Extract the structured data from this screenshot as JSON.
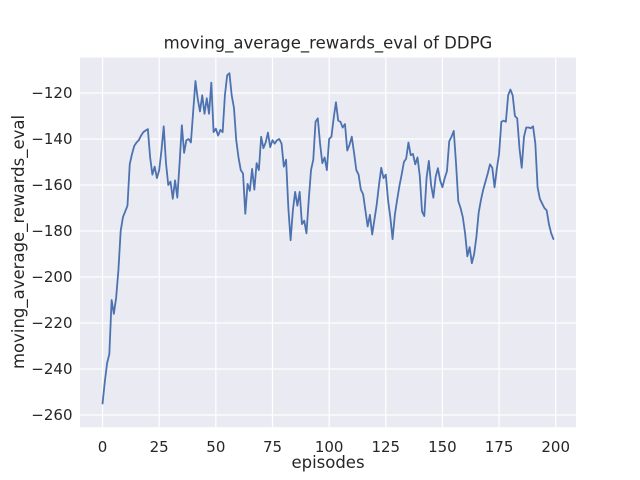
{
  "figure": {
    "title": "moving_average_rewards_eval of DDPG",
    "xlabel": "episodes",
    "ylabel": "moving_average_rewards_eval"
  },
  "style": {
    "axes_background": "#eaeaf2",
    "grid_color": "#ffffff",
    "line_color": "#4c72b0",
    "text_color": "#262626",
    "figure_background": "#ffffff"
  },
  "chart_data": {
    "type": "line",
    "title": "moving_average_rewards_eval of DDPG",
    "xlabel": "episodes",
    "ylabel": "moving_average_rewards_eval",
    "x_ticks": [
      0,
      25,
      50,
      75,
      100,
      125,
      150,
      175,
      200
    ],
    "y_ticks": [
      -120,
      -140,
      -160,
      -180,
      -200,
      -220,
      -240,
      -260
    ],
    "xlim": [
      -9.95,
      208.95
    ],
    "ylim": [
      -265.3,
      -104.6
    ],
    "grid": true,
    "legend": false,
    "x_start": 0,
    "x_step": 1,
    "values": [
      -255,
      -245.5,
      -237.5,
      -233.5,
      -210,
      -216,
      -209,
      -197,
      -180,
      -174,
      -171.5,
      -169,
      -151,
      -146.5,
      -143,
      -141.5,
      -140.5,
      -138.5,
      -137,
      -136.3,
      -135.7,
      -148,
      -155.5,
      -152,
      -157,
      -153.5,
      -145,
      -134.5,
      -150.5,
      -160,
      -158.5,
      -166,
      -158,
      -165.5,
      -150.5,
      -134,
      -146,
      -140.5,
      -140,
      -141.5,
      -128,
      -114.8,
      -122.5,
      -128,
      -121,
      -129,
      -122.3,
      -129,
      -115.5,
      -137,
      -135.5,
      -138.5,
      -136,
      -137,
      -121,
      -112.3,
      -111.4,
      -121,
      -126.5,
      -140.5,
      -148,
      -153.5,
      -155,
      -172.5,
      -159.5,
      -162.5,
      -153,
      -162,
      -150.5,
      -153.5,
      -139,
      -144,
      -141.5,
      -137.2,
      -143.5,
      -140.5,
      -142,
      -140.5,
      -140,
      -142,
      -152,
      -149,
      -170,
      -184,
      -171,
      -163,
      -169,
      -163,
      -177,
      -175.5,
      -181,
      -166.5,
      -153.5,
      -149,
      -132.5,
      -131,
      -142,
      -150.5,
      -148,
      -153.5,
      -140,
      -139,
      -131,
      -124,
      -132,
      -132.5,
      -135,
      -133.5,
      -145,
      -142.5,
      -139,
      -146,
      -153.5,
      -155.5,
      -162,
      -164,
      -171,
      -178,
      -173,
      -181.5,
      -175,
      -168.5,
      -160,
      -152.5,
      -157,
      -155.5,
      -166.5,
      -174,
      -183.5,
      -173,
      -166.5,
      -160.5,
      -155.5,
      -150,
      -148.5,
      -141.5,
      -147,
      -146.5,
      -151,
      -148,
      -156,
      -171.5,
      -173.5,
      -157,
      -149.5,
      -160,
      -165.5,
      -156.5,
      -152.7,
      -158,
      -161,
      -157,
      -154,
      -141,
      -139,
      -136.5,
      -150.5,
      -167,
      -170,
      -174,
      -181,
      -191,
      -187,
      -194,
      -190,
      -182.5,
      -172,
      -166.5,
      -162,
      -158.5,
      -155,
      -151,
      -152.5,
      -161,
      -153,
      -146.5,
      -132.5,
      -132,
      -132.5,
      -121,
      -118.5,
      -121,
      -130,
      -131,
      -144,
      -152.5,
      -139,
      -135,
      -135,
      -135.3,
      -134.5,
      -142,
      -161,
      -166,
      -168,
      -170,
      -171,
      -177,
      -181,
      -183.5
    ]
  }
}
